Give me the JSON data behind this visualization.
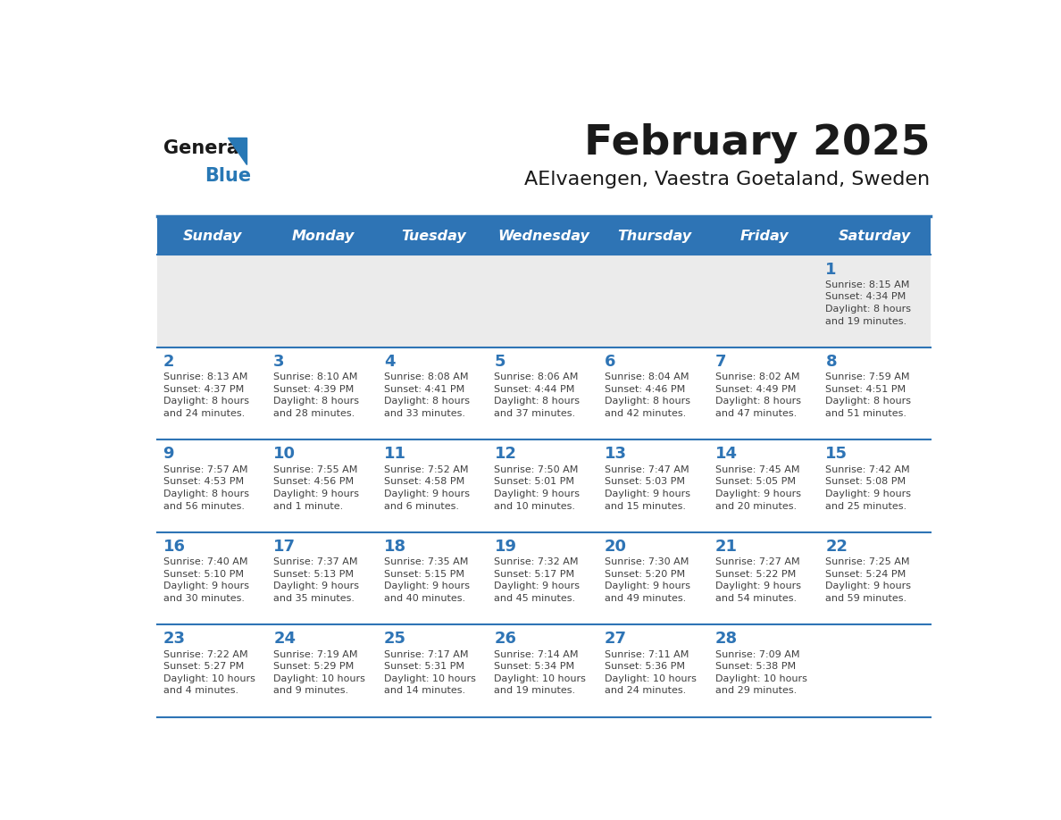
{
  "title": "February 2025",
  "subtitle": "AElvaengen, Vaestra Goetaland, Sweden",
  "days_of_week": [
    "Sunday",
    "Monday",
    "Tuesday",
    "Wednesday",
    "Thursday",
    "Friday",
    "Saturday"
  ],
  "header_bg": "#2E74B5",
  "header_text": "#FFFFFF",
  "row_bg_light": "#FFFFFF",
  "row_bg_dark": "#EBEBEB",
  "cell_border": "#2E74B5",
  "day_num_color": "#2E74B5",
  "info_text_color": "#404040",
  "title_color": "#1A1A1A",
  "logo_general_color": "#1A1A1A",
  "logo_blue_color": "#2878B5",
  "calendar_data": [
    [
      {
        "day": null,
        "info": ""
      },
      {
        "day": null,
        "info": ""
      },
      {
        "day": null,
        "info": ""
      },
      {
        "day": null,
        "info": ""
      },
      {
        "day": null,
        "info": ""
      },
      {
        "day": null,
        "info": ""
      },
      {
        "day": 1,
        "info": "Sunrise: 8:15 AM\nSunset: 4:34 PM\nDaylight: 8 hours\nand 19 minutes."
      }
    ],
    [
      {
        "day": 2,
        "info": "Sunrise: 8:13 AM\nSunset: 4:37 PM\nDaylight: 8 hours\nand 24 minutes."
      },
      {
        "day": 3,
        "info": "Sunrise: 8:10 AM\nSunset: 4:39 PM\nDaylight: 8 hours\nand 28 minutes."
      },
      {
        "day": 4,
        "info": "Sunrise: 8:08 AM\nSunset: 4:41 PM\nDaylight: 8 hours\nand 33 minutes."
      },
      {
        "day": 5,
        "info": "Sunrise: 8:06 AM\nSunset: 4:44 PM\nDaylight: 8 hours\nand 37 minutes."
      },
      {
        "day": 6,
        "info": "Sunrise: 8:04 AM\nSunset: 4:46 PM\nDaylight: 8 hours\nand 42 minutes."
      },
      {
        "day": 7,
        "info": "Sunrise: 8:02 AM\nSunset: 4:49 PM\nDaylight: 8 hours\nand 47 minutes."
      },
      {
        "day": 8,
        "info": "Sunrise: 7:59 AM\nSunset: 4:51 PM\nDaylight: 8 hours\nand 51 minutes."
      }
    ],
    [
      {
        "day": 9,
        "info": "Sunrise: 7:57 AM\nSunset: 4:53 PM\nDaylight: 8 hours\nand 56 minutes."
      },
      {
        "day": 10,
        "info": "Sunrise: 7:55 AM\nSunset: 4:56 PM\nDaylight: 9 hours\nand 1 minute."
      },
      {
        "day": 11,
        "info": "Sunrise: 7:52 AM\nSunset: 4:58 PM\nDaylight: 9 hours\nand 6 minutes."
      },
      {
        "day": 12,
        "info": "Sunrise: 7:50 AM\nSunset: 5:01 PM\nDaylight: 9 hours\nand 10 minutes."
      },
      {
        "day": 13,
        "info": "Sunrise: 7:47 AM\nSunset: 5:03 PM\nDaylight: 9 hours\nand 15 minutes."
      },
      {
        "day": 14,
        "info": "Sunrise: 7:45 AM\nSunset: 5:05 PM\nDaylight: 9 hours\nand 20 minutes."
      },
      {
        "day": 15,
        "info": "Sunrise: 7:42 AM\nSunset: 5:08 PM\nDaylight: 9 hours\nand 25 minutes."
      }
    ],
    [
      {
        "day": 16,
        "info": "Sunrise: 7:40 AM\nSunset: 5:10 PM\nDaylight: 9 hours\nand 30 minutes."
      },
      {
        "day": 17,
        "info": "Sunrise: 7:37 AM\nSunset: 5:13 PM\nDaylight: 9 hours\nand 35 minutes."
      },
      {
        "day": 18,
        "info": "Sunrise: 7:35 AM\nSunset: 5:15 PM\nDaylight: 9 hours\nand 40 minutes."
      },
      {
        "day": 19,
        "info": "Sunrise: 7:32 AM\nSunset: 5:17 PM\nDaylight: 9 hours\nand 45 minutes."
      },
      {
        "day": 20,
        "info": "Sunrise: 7:30 AM\nSunset: 5:20 PM\nDaylight: 9 hours\nand 49 minutes."
      },
      {
        "day": 21,
        "info": "Sunrise: 7:27 AM\nSunset: 5:22 PM\nDaylight: 9 hours\nand 54 minutes."
      },
      {
        "day": 22,
        "info": "Sunrise: 7:25 AM\nSunset: 5:24 PM\nDaylight: 9 hours\nand 59 minutes."
      }
    ],
    [
      {
        "day": 23,
        "info": "Sunrise: 7:22 AM\nSunset: 5:27 PM\nDaylight: 10 hours\nand 4 minutes."
      },
      {
        "day": 24,
        "info": "Sunrise: 7:19 AM\nSunset: 5:29 PM\nDaylight: 10 hours\nand 9 minutes."
      },
      {
        "day": 25,
        "info": "Sunrise: 7:17 AM\nSunset: 5:31 PM\nDaylight: 10 hours\nand 14 minutes."
      },
      {
        "day": 26,
        "info": "Sunrise: 7:14 AM\nSunset: 5:34 PM\nDaylight: 10 hours\nand 19 minutes."
      },
      {
        "day": 27,
        "info": "Sunrise: 7:11 AM\nSunset: 5:36 PM\nDaylight: 10 hours\nand 24 minutes."
      },
      {
        "day": 28,
        "info": "Sunrise: 7:09 AM\nSunset: 5:38 PM\nDaylight: 10 hours\nand 29 minutes."
      },
      {
        "day": null,
        "info": ""
      }
    ]
  ]
}
